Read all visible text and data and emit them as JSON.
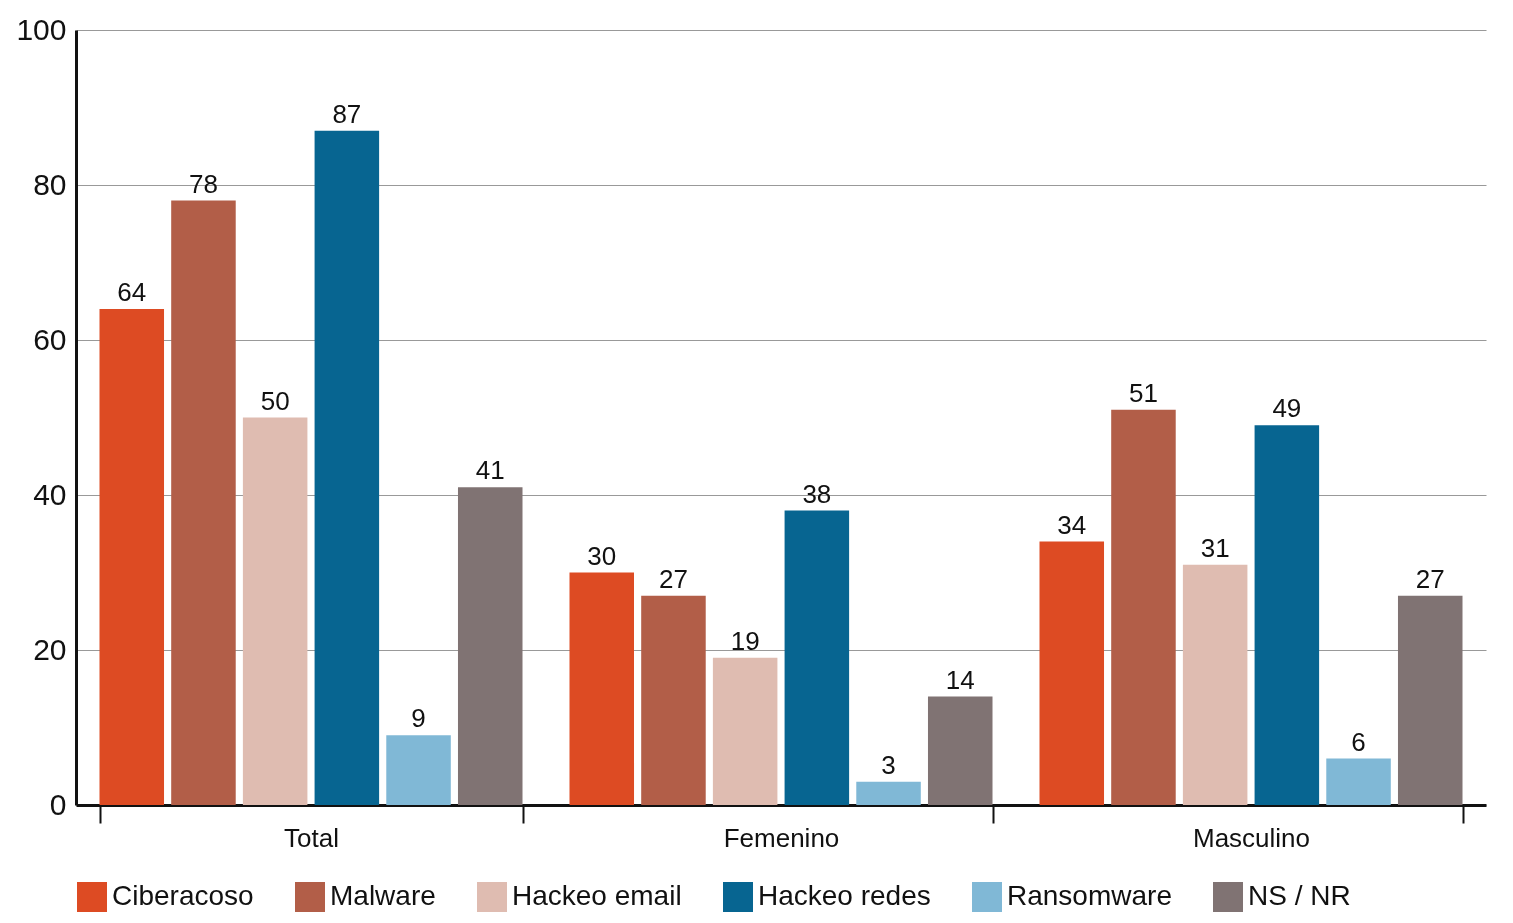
{
  "chart_data": {
    "type": "bar",
    "categories": [
      "Total",
      "Femenino",
      "Masculino"
    ],
    "series": [
      {
        "name": "Ciberacoso",
        "color": "#dd4b23",
        "values": [
          64,
          30,
          34
        ]
      },
      {
        "name": "Malware",
        "color": "#b25e48",
        "values": [
          78,
          27,
          51
        ]
      },
      {
        "name": "Hackeo email",
        "color": "#dfbcb1",
        "values": [
          50,
          19,
          31
        ]
      },
      {
        "name": "Hackeo redes",
        "color": "#076591",
        "values": [
          87,
          38,
          49
        ]
      },
      {
        "name": "Ransomware",
        "color": "#80b8d6",
        "values": [
          9,
          3,
          6
        ]
      },
      {
        "name": "NS / NR",
        "color": "#807373",
        "values": [
          41,
          14,
          27
        ]
      }
    ],
    "ylim": [
      0,
      100
    ],
    "yticks": [
      0,
      20,
      40,
      60,
      80,
      100
    ],
    "grid": "y",
    "legend": "bottom",
    "data_labels": true
  }
}
